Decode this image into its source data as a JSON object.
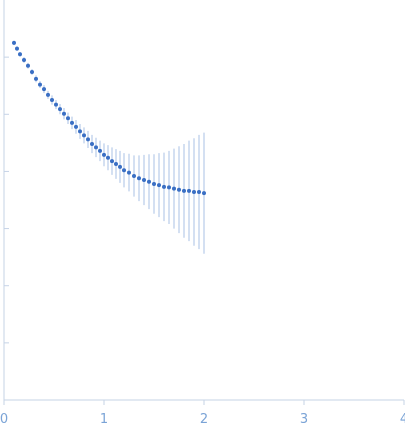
{
  "chart_data": {
    "type": "scatter",
    "title": "",
    "xlabel": "",
    "ylabel": "",
    "xlim": [
      0,
      4
    ],
    "ylim": [
      0,
      7
    ],
    "y_scale": "log",
    "x_ticks": [
      0,
      1,
      2,
      3,
      4
    ],
    "x_tick_labels": [
      "0",
      "1",
      "2",
      "3",
      "4"
    ],
    "y_ticks": [
      1,
      2,
      3,
      4,
      5,
      6
    ],
    "y_tick_labels": [],
    "grid": false,
    "legend": "none",
    "colors": {
      "points": "#3a6fc4",
      "outliers": "#e0393e",
      "error_bars": "#a9c1e6",
      "axis": "#c6d3e6",
      "tick_labels": "#7aa3d6"
    },
    "series": [
      {
        "values_description_only": false,
        "x": [
          0.1,
          0.13,
          0.16,
          0.2,
          0.24,
          0.28,
          0.32,
          0.36,
          0.4,
          0.44,
          0.48,
          0.52,
          0.56,
          0.6,
          0.64,
          0.68,
          0.72,
          0.76,
          0.8,
          0.84,
          0.88,
          0.92,
          0.96,
          1.0,
          1.04,
          1.08,
          1.12,
          1.16,
          1.2,
          1.25,
          1.3,
          1.35,
          1.4,
          1.45,
          1.5,
          1.55,
          1.6,
          1.65,
          1.7,
          1.75,
          1.8,
          1.85,
          1.9,
          1.95,
          2.0
        ],
        "y": [
          6.25,
          6.15,
          6.05,
          5.95,
          5.85,
          5.74,
          5.62,
          5.52,
          5.44,
          5.34,
          5.25,
          5.17,
          5.09,
          5.01,
          4.93,
          4.85,
          4.78,
          4.7,
          4.63,
          4.56,
          4.48,
          4.42,
          4.36,
          4.29,
          4.24,
          4.18,
          4.13,
          4.08,
          4.02,
          3.98,
          3.92,
          3.88,
          3.85,
          3.82,
          3.78,
          3.76,
          3.73,
          3.72,
          3.7,
          3.68,
          3.66,
          3.66,
          3.64,
          3.64,
          3.62
        ],
        "err": [
          0.04,
          0.04,
          0.04,
          0.05,
          0.05,
          0.05,
          0.06,
          0.06,
          0.07,
          0.07,
          0.08,
          0.08,
          0.09,
          0.1,
          0.1,
          0.11,
          0.12,
          0.13,
          0.14,
          0.15,
          0.16,
          0.17,
          0.18,
          0.2,
          0.22,
          0.24,
          0.26,
          0.28,
          0.3,
          0.33,
          0.36,
          0.4,
          0.44,
          0.48,
          0.52,
          0.56,
          0.6,
          0.64,
          0.7,
          0.76,
          0.82,
          0.88,
          0.94,
          1.0,
          1.06
        ]
      }
    ]
  }
}
